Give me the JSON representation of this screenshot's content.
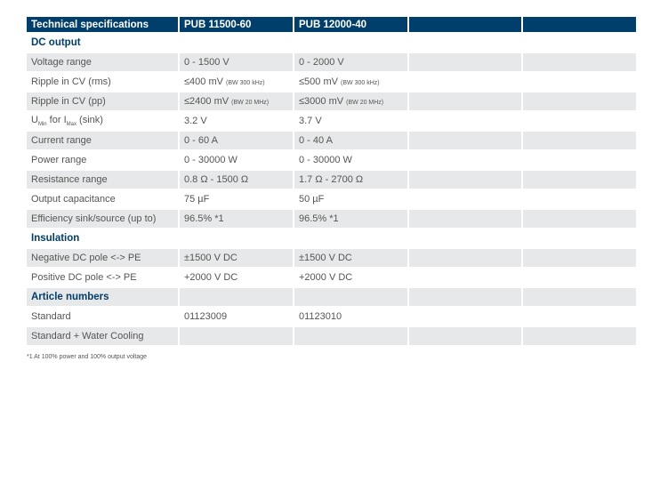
{
  "header": [
    "Technical specifications",
    "PUB 11500-60",
    "PUB 12000-40",
    "",
    ""
  ],
  "rows": [
    {
      "section": true,
      "gray": false,
      "label": "DC output",
      "cells": [
        "",
        "",
        "",
        ""
      ]
    },
    {
      "gray": true,
      "label": "Voltage range",
      "cells": [
        "0 - 1500 V",
        "0 - 2000 V",
        "",
        ""
      ]
    },
    {
      "gray": false,
      "label": "Ripple in CV (rms)",
      "cells": [
        "≤400 mV",
        "≤500 mV",
        "",
        ""
      ],
      "notes": [
        "(BW 300 kHz)",
        "(BW 300 kHz)"
      ]
    },
    {
      "gray": true,
      "label": "Ripple in CV (pp)",
      "cells": [
        "≤2400 mV",
        "≤3000 mV",
        "",
        ""
      ],
      "notes": [
        "(BW 20 MHz)",
        "(BW 20 MHz)"
      ]
    },
    {
      "gray": false,
      "label": "U",
      "label_parts": [
        "U",
        "Min",
        " for I",
        "Max",
        " (sink)"
      ],
      "cells": [
        "3.2 V",
        "3.7 V",
        "",
        ""
      ]
    },
    {
      "gray": true,
      "label": "Current range",
      "cells": [
        "0 - 60 A",
        "0 - 40 A",
        "",
        ""
      ]
    },
    {
      "gray": false,
      "label": "Power range",
      "cells": [
        "0 - 30000 W",
        "0 - 30000 W",
        "",
        ""
      ]
    },
    {
      "gray": true,
      "label": "Resistance range",
      "cells": [
        "0.8 Ω - 1500 Ω",
        "1.7 Ω - 2700 Ω",
        "",
        ""
      ]
    },
    {
      "gray": false,
      "label": "Output capacitance",
      "cells": [
        "75 µF",
        "50 µF",
        "",
        ""
      ]
    },
    {
      "gray": true,
      "label": "Efficiency sink/source (up to)",
      "cells": [
        "96.5% *1",
        "96.5% *1",
        "",
        ""
      ]
    },
    {
      "section": true,
      "gray": false,
      "label": "Insulation",
      "cells": [
        "",
        "",
        "",
        ""
      ]
    },
    {
      "gray": true,
      "label": "Negative DC pole <-> PE",
      "cells": [
        "±1500 V DC",
        "±1500 V DC",
        "",
        ""
      ]
    },
    {
      "gray": false,
      "label": "Positive DC pole <-> PE",
      "cells": [
        "+2000 V DC",
        "+2000 V DC",
        "",
        ""
      ]
    },
    {
      "section": true,
      "gray": true,
      "label": "Article numbers",
      "cells": [
        "",
        "",
        "",
        ""
      ]
    },
    {
      "gray": false,
      "label": "Standard",
      "cells": [
        "01123009",
        "01123010",
        "",
        ""
      ]
    },
    {
      "gray": true,
      "label": "Standard + Water Cooling",
      "cells": [
        "",
        "",
        "",
        ""
      ]
    }
  ],
  "footnote": "*1 At 100% power and 100% output voltage",
  "colors": {
    "header": "#003f6b",
    "row_gray": "#e7e8e9"
  }
}
